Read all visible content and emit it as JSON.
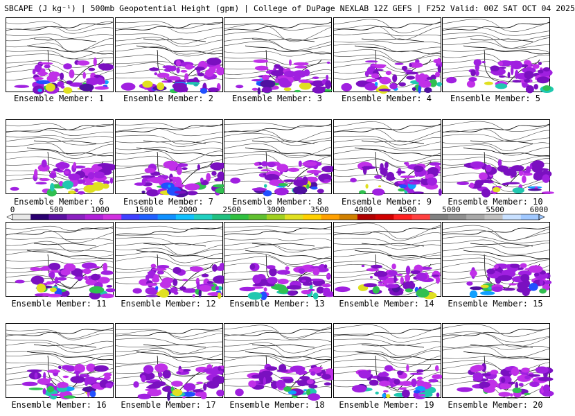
{
  "header": {
    "title": "SBCAPE (J kg⁻¹) | 500mb Geopotential Height (gpm) | College of DuPage NEXLAB 12Z GEFS | F252 Valid: 00Z SAT OCT 04 2025"
  },
  "colorbar": {
    "ticks": [
      "0",
      "500",
      "1000",
      "1500",
      "2000",
      "2500",
      "3000",
      "3500",
      "4000",
      "4500",
      "5000",
      "5500",
      "6000"
    ],
    "min": 0,
    "max": 6000,
    "colors": [
      "#e8e8e8",
      "#2a0070",
      "#5a10a0",
      "#8a20c0",
      "#b020d8",
      "#d030e0",
      "#4040ff",
      "#2060ff",
      "#1090ff",
      "#10c0ff",
      "#20d0c0",
      "#20c080",
      "#30c040",
      "#60c030",
      "#a0d020",
      "#e0e020",
      "#ffd000",
      "#ffa000",
      "#d08000",
      "#b00000",
      "#d00000",
      "#ff2020",
      "#ff4040",
      "#808080",
      "#909090",
      "#a8a8a8",
      "#c0c0c0",
      "#c8e0ff",
      "#a0c8ff"
    ]
  },
  "members": [
    {
      "label": "Ensemble Member: 1"
    },
    {
      "label": "Ensemble Member: 2"
    },
    {
      "label": "Ensemble Member: 3"
    },
    {
      "label": "Ensemble Member: 4"
    },
    {
      "label": "Ensemble Member: 5"
    },
    {
      "label": "Ensemble Member: 6"
    },
    {
      "label": "Ensemble Member: 7"
    },
    {
      "label": "Ensemble Member: 8"
    },
    {
      "label": "Ensemble Member: 9"
    },
    {
      "label": "Ensemble Member: 10"
    },
    {
      "label": "Ensemble Member: 11"
    },
    {
      "label": "Ensemble Member: 12"
    },
    {
      "label": "Ensemble Member: 13"
    },
    {
      "label": "Ensemble Member: 14"
    },
    {
      "label": "Ensemble Member: 15"
    },
    {
      "label": "Ensemble Member: 16"
    },
    {
      "label": "Ensemble Member: 17"
    },
    {
      "label": "Ensemble Member: 18"
    },
    {
      "label": "Ensemble Member: 19"
    },
    {
      "label": "Ensemble Member: 20"
    }
  ]
}
